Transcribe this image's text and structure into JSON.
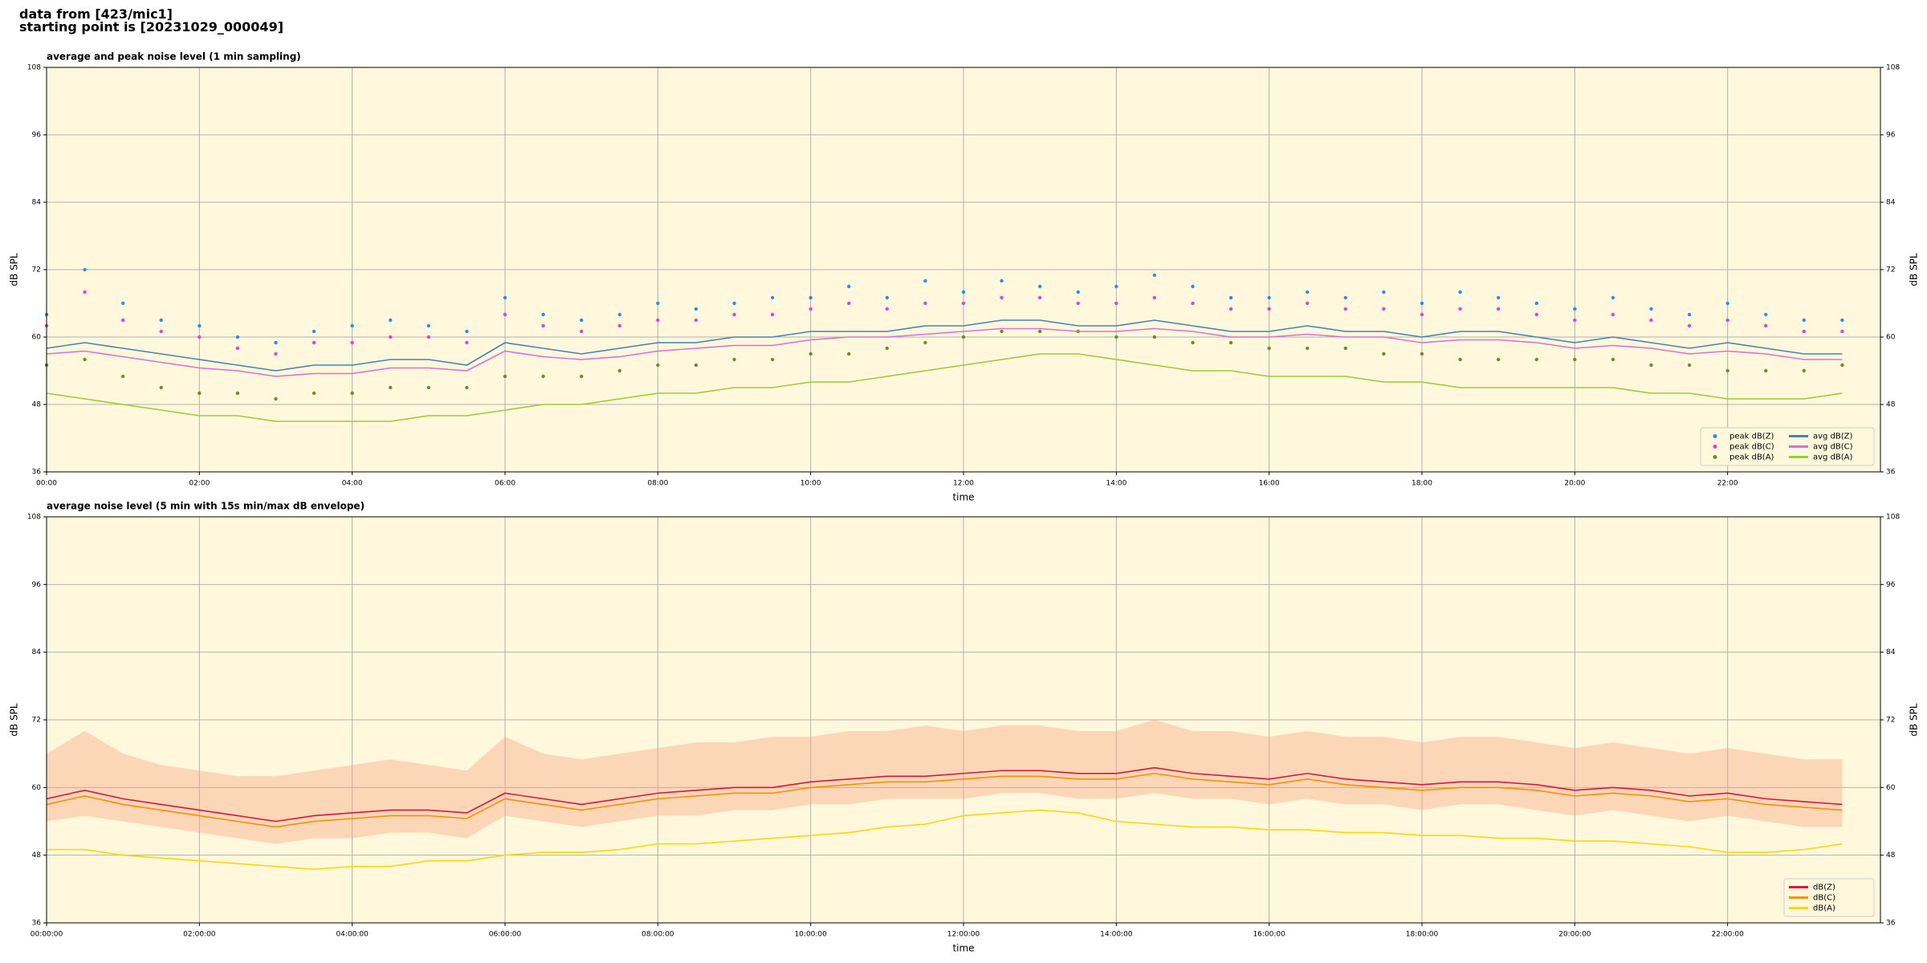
{
  "header": {
    "line1": "data from [423/mic1]",
    "line2": "starting point is [20231029_000049]"
  },
  "chart_data": [
    {
      "type": "line",
      "title": "average and peak noise level (1 min sampling)",
      "xlabel": "time",
      "ylabel": "dB SPL",
      "x": [
        0,
        0.5,
        1,
        1.5,
        2,
        2.5,
        3,
        3.5,
        4,
        4.5,
        5,
        5.5,
        6,
        6.5,
        7,
        7.5,
        8,
        8.5,
        9,
        9.5,
        10,
        10.5,
        11,
        11.5,
        12,
        12.5,
        13,
        13.5,
        14,
        14.5,
        15,
        15.5,
        16,
        16.5,
        17,
        17.5,
        18,
        18.5,
        19,
        19.5,
        20,
        20.5,
        21,
        21.5,
        22,
        22.5,
        23,
        23.5
      ],
      "xlim": [
        0,
        24
      ],
      "xticks": [
        {
          "value": 0,
          "label": "00:00"
        },
        {
          "value": 2,
          "label": "02:00"
        },
        {
          "value": 4,
          "label": "04:00"
        },
        {
          "value": 6,
          "label": "06:00"
        },
        {
          "value": 8,
          "label": "08:00"
        },
        {
          "value": 10,
          "label": "10:00"
        },
        {
          "value": 12,
          "label": "12:00"
        },
        {
          "value": 14,
          "label": "14:00"
        },
        {
          "value": 16,
          "label": "16:00"
        },
        {
          "value": 18,
          "label": "18:00"
        },
        {
          "value": 20,
          "label": "20:00"
        },
        {
          "value": 22,
          "label": "22:00"
        }
      ],
      "ylim": [
        36,
        108
      ],
      "yticks": [
        36,
        48,
        60,
        72,
        84,
        96,
        108
      ],
      "grid": true,
      "legend": "lower right",
      "legend_columns": 2,
      "series": [
        {
          "name": "peak dB(Z)",
          "color": "#1e90ff",
          "mark": "dot",
          "values": [
            64,
            72,
            66,
            63,
            62,
            60,
            59,
            61,
            62,
            63,
            62,
            61,
            67,
            64,
            63,
            64,
            66,
            65,
            66,
            67,
            67,
            69,
            67,
            70,
            68,
            70,
            69,
            68,
            69,
            71,
            69,
            67,
            67,
            68,
            67,
            68,
            66,
            68,
            67,
            66,
            65,
            67,
            65,
            64,
            66,
            64,
            63,
            63
          ]
        },
        {
          "name": "peak dB(C)",
          "color": "#e040e0",
          "mark": "dot",
          "values": [
            62,
            68,
            63,
            61,
            60,
            58,
            57,
            59,
            59,
            60,
            60,
            59,
            64,
            62,
            61,
            62,
            63,
            63,
            64,
            64,
            65,
            66,
            65,
            66,
            66,
            67,
            67,
            66,
            66,
            67,
            66,
            65,
            65,
            66,
            65,
            65,
            64,
            65,
            65,
            64,
            63,
            64,
            63,
            62,
            63,
            62,
            61,
            61
          ]
        },
        {
          "name": "peak dB(A)",
          "color": "#6b8e23",
          "mark": "dot",
          "values": [
            55,
            56,
            53,
            51,
            50,
            50,
            49,
            50,
            50,
            51,
            51,
            51,
            53,
            53,
            53,
            54,
            55,
            55,
            56,
            56,
            57,
            57,
            58,
            59,
            60,
            61,
            61,
            61,
            60,
            60,
            59,
            59,
            58,
            58,
            58,
            57,
            57,
            56,
            56,
            56,
            56,
            56,
            55,
            55,
            54,
            54,
            54,
            55
          ]
        },
        {
          "name": "avg dB(Z)",
          "color": "#4682b4",
          "mark": "line",
          "values": [
            58,
            59,
            58,
            57,
            56,
            55,
            54,
            55,
            55,
            56,
            56,
            55,
            59,
            58,
            57,
            58,
            59,
            59,
            60,
            60,
            61,
            61,
            61,
            62,
            62,
            63,
            63,
            62,
            62,
            63,
            62,
            61,
            61,
            62,
            61,
            61,
            60,
            61,
            61,
            60,
            59,
            60,
            59,
            58,
            59,
            58,
            57,
            57
          ]
        },
        {
          "name": "avg dB(C)",
          "color": "#da70d6",
          "mark": "line",
          "values": [
            57,
            57.5,
            56.5,
            55.5,
            54.5,
            54,
            53,
            53.5,
            53.5,
            54.5,
            54.5,
            54,
            57.5,
            56.5,
            56,
            56.5,
            57.5,
            58,
            58.5,
            58.5,
            59.5,
            60,
            60,
            60.5,
            61,
            61.5,
            61.5,
            61,
            61,
            61.5,
            61,
            60,
            60,
            60.5,
            60,
            60,
            59,
            59.5,
            59.5,
            59,
            58,
            58.5,
            58,
            57,
            57.5,
            57,
            56,
            56
          ]
        },
        {
          "name": "avg dB(A)",
          "color": "#9acd32",
          "mark": "line",
          "values": [
            50,
            49,
            48,
            47,
            46,
            46,
            45,
            45,
            45,
            45,
            46,
            46,
            47,
            48,
            48,
            49,
            50,
            50,
            51,
            51,
            52,
            52,
            53,
            54,
            55,
            56,
            57,
            57,
            56,
            55,
            54,
            54,
            53,
            53,
            53,
            52,
            52,
            51,
            51,
            51,
            51,
            51,
            50,
            50,
            49,
            49,
            49,
            50
          ]
        }
      ]
    },
    {
      "type": "line",
      "title": "average noise level (5 min with 15s min/max dB envelope)",
      "xlabel": "time",
      "ylabel": "dB SPL",
      "x": [
        0,
        0.5,
        1,
        1.5,
        2,
        2.5,
        3,
        3.5,
        4,
        4.5,
        5,
        5.5,
        6,
        6.5,
        7,
        7.5,
        8,
        8.5,
        9,
        9.5,
        10,
        10.5,
        11,
        11.5,
        12,
        12.5,
        13,
        13.5,
        14,
        14.5,
        15,
        15.5,
        16,
        16.5,
        17,
        17.5,
        18,
        18.5,
        19,
        19.5,
        20,
        20.5,
        21,
        21.5,
        22,
        22.5,
        23,
        23.5
      ],
      "xlim": [
        0,
        24
      ],
      "xticks": [
        {
          "value": 0,
          "label": "00:00:00"
        },
        {
          "value": 2,
          "label": "02:00:00"
        },
        {
          "value": 4,
          "label": "04:00:00"
        },
        {
          "value": 6,
          "label": "06:00:00"
        },
        {
          "value": 8,
          "label": "08:00:00"
        },
        {
          "value": 10,
          "label": "10:00:00"
        },
        {
          "value": 12,
          "label": "12:00:00"
        },
        {
          "value": 14,
          "label": "14:00:00"
        },
        {
          "value": 16,
          "label": "16:00:00"
        },
        {
          "value": 18,
          "label": "18:00:00"
        },
        {
          "value": 20,
          "label": "20:00:00"
        },
        {
          "value": 22,
          "label": "22:00:00"
        }
      ],
      "ylim": [
        36,
        108
      ],
      "yticks": [
        36,
        48,
        60,
        72,
        84,
        96,
        108
      ],
      "grid": true,
      "legend": "lower right",
      "legend_columns": 1,
      "band": {
        "color": "#f4a582",
        "lower": [
          54,
          55,
          54,
          53,
          52,
          51,
          50,
          51,
          51,
          52,
          52,
          51,
          55,
          54,
          53,
          54,
          55,
          55,
          56,
          56,
          57,
          57,
          58,
          58,
          58,
          59,
          59,
          58,
          58,
          59,
          58,
          58,
          57,
          58,
          57,
          57,
          56,
          57,
          57,
          56,
          55,
          56,
          55,
          54,
          55,
          54,
          53,
          53
        ],
        "upper": [
          66,
          70,
          66,
          64,
          63,
          62,
          62,
          63,
          64,
          65,
          64,
          63,
          69,
          66,
          65,
          66,
          67,
          68,
          68,
          69,
          69,
          70,
          70,
          71,
          70,
          71,
          71,
          70,
          70,
          72,
          70,
          70,
          69,
          70,
          69,
          69,
          68,
          69,
          69,
          68,
          67,
          68,
          67,
          66,
          67,
          66,
          65,
          65
        ]
      },
      "series": [
        {
          "name": "dB(Z)",
          "color": "#dc143c",
          "mark": "line",
          "values": [
            58,
            59.5,
            58,
            57,
            56,
            55,
            54,
            55,
            55.5,
            56,
            56,
            55.5,
            59,
            58,
            57,
            58,
            59,
            59.5,
            60,
            60,
            61,
            61.5,
            62,
            62,
            62.5,
            63,
            63,
            62.5,
            62.5,
            63.5,
            62.5,
            62,
            61.5,
            62.5,
            61.5,
            61,
            60.5,
            61,
            61,
            60.5,
            59.5,
            60,
            59.5,
            58.5,
            59,
            58,
            57.5,
            57
          ]
        },
        {
          "name": "dB(C)",
          "color": "#ff8c00",
          "mark": "line",
          "values": [
            57,
            58.5,
            57,
            56,
            55,
            54,
            53,
            54,
            54.5,
            55,
            55,
            54.5,
            58,
            57,
            56,
            57,
            58,
            58.5,
            59,
            59,
            60,
            60.5,
            61,
            61,
            61.5,
            62,
            62,
            61.5,
            61.5,
            62.5,
            61.5,
            61,
            60.5,
            61.5,
            60.5,
            60,
            59.5,
            60,
            60,
            59.5,
            58.5,
            59,
            58.5,
            57.5,
            58,
            57,
            56.5,
            56
          ]
        },
        {
          "name": "dB(A)",
          "color": "#ffd700",
          "mark": "line",
          "values": [
            49,
            49,
            48,
            47.5,
            47,
            46.5,
            46,
            45.5,
            46,
            46,
            47,
            47,
            48,
            48.5,
            48.5,
            49,
            50,
            50,
            50.5,
            51,
            51.5,
            52,
            53,
            53.5,
            55,
            55.5,
            56,
            55.5,
            54,
            53.5,
            53,
            53,
            52.5,
            52.5,
            52,
            52,
            51.5,
            51.5,
            51,
            51,
            50.5,
            50.5,
            50,
            49.5,
            48.5,
            48.5,
            49,
            50
          ]
        }
      ]
    }
  ]
}
